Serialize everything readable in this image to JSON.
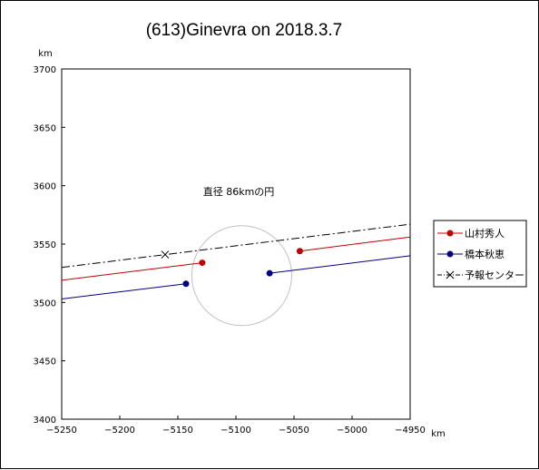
{
  "chart_data": {
    "type": "line",
    "title": "(613)Ginevra on 2018.3.7",
    "xlabel": "km",
    "ylabel": "km",
    "xlim": [
      -5250,
      -4950
    ],
    "ylim": [
      3400,
      3700
    ],
    "x_ticks": [
      -5250,
      -5200,
      -5150,
      -5100,
      -5050,
      -5000,
      -4950
    ],
    "y_ticks": [
      3400,
      3450,
      3500,
      3550,
      3600,
      3650,
      3700
    ],
    "grid": false,
    "legend_position": "right",
    "annotation": "直径 86kmの円",
    "circle": {
      "center": [
        -5095,
        3523
      ],
      "radius": 43,
      "color": "#c0c0c0"
    },
    "series": [
      {
        "name": "山村秀人",
        "color": "#c00000",
        "marker": "circle",
        "line": "solid",
        "segments": [
          [
            [
              -5250,
              3519
            ],
            [
              -5129,
              3534
            ]
          ],
          [
            [
              -5045,
              3544
            ],
            [
              -4950,
              3556
            ]
          ]
        ],
        "markers": [
          [
            -5129,
            3534
          ],
          [
            -5045,
            3544
          ]
        ]
      },
      {
        "name": "橋本秋恵",
        "color": "#000080",
        "marker": "circle",
        "line": "solid",
        "segments": [
          [
            [
              -5250,
              3503
            ],
            [
              -5143,
              3516
            ]
          ],
          [
            [
              -5071,
              3525
            ],
            [
              -4950,
              3540
            ]
          ]
        ],
        "markers": [
          [
            -5143,
            3516
          ],
          [
            -5071,
            3525
          ]
        ]
      },
      {
        "name": "予報センター",
        "color": "#000000",
        "marker": "x",
        "line": "dashdot",
        "segments": [
          [
            [
              -5250,
              3530
            ],
            [
              -4950,
              3567
            ]
          ]
        ],
        "markers": [
          [
            -5161,
            3541
          ]
        ]
      }
    ]
  }
}
